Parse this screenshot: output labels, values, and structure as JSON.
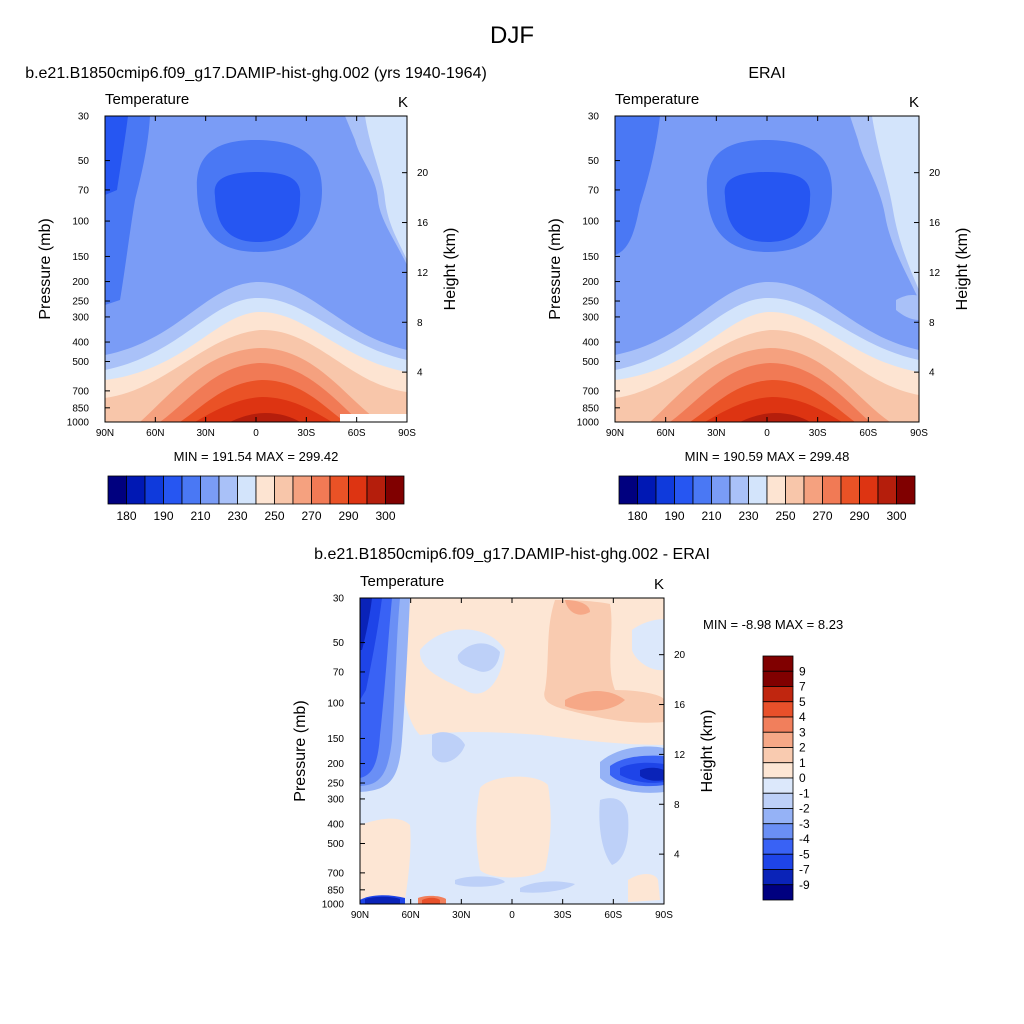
{
  "figure": {
    "title": "DJF"
  },
  "colors": {
    "abs_scale": [
      "#00007f",
      "#0018b4",
      "#0f3adc",
      "#2656f2",
      "#4a78f4",
      "#7a9cf6",
      "#a9c1f8",
      "#d3e4fb",
      "#fde4d2",
      "#f8c6aa",
      "#f5a17f",
      "#f17a55",
      "#ea5226",
      "#dd3412",
      "#b51e0c",
      "#800000"
    ],
    "diff_scale": [
      "#000080",
      "#0a23b8",
      "#1e44e8",
      "#3962f5",
      "#6a8ff5",
      "#95b2f6",
      "#bdd0f8",
      "#dce8fb",
      "#fde6d4",
      "#f9cbb0",
      "#f6a887",
      "#f17f5c",
      "#e8502a",
      "#c0260f",
      "#800000"
    ]
  },
  "chart_data": [
    {
      "type": "heatmap",
      "title": "b.e21.B1850cmip6.f09_g17.DAMIP-hist-ghg.002 (yrs 1940-1964)",
      "left_label": "Temperature",
      "right_label": "K",
      "ylabel": "Pressure (mb)",
      "ylabel_right": "Height (km)",
      "x_ticks": [
        "90N",
        "60N",
        "30N",
        "0",
        "30S",
        "60S",
        "90S"
      ],
      "y_ticks": [
        "30",
        "50",
        "70",
        "100",
        "150",
        "200",
        "250",
        "300",
        "400",
        "500",
        "700",
        "850",
        "1000"
      ],
      "y_ticks_right": [
        "20",
        "16",
        "12",
        "8",
        "4"
      ],
      "stats": "MIN = 191.54  MAX = 299.42",
      "colorbar": {
        "orientation": "horizontal",
        "levels": [
          180,
          185,
          190,
          200,
          210,
          220,
          230,
          240,
          250,
          260,
          270,
          280,
          290,
          295,
          300
        ],
        "tick_labels": [
          "180",
          "190",
          "210",
          "230",
          "250",
          "270",
          "290",
          "300"
        ]
      },
      "min": 191.54,
      "max": 299.42
    },
    {
      "type": "heatmap",
      "title": "ERAI",
      "left_label": "Temperature",
      "right_label": "K",
      "ylabel": "Pressure (mb)",
      "ylabel_right": "Height (km)",
      "x_ticks": [
        "90N",
        "60N",
        "30N",
        "0",
        "30S",
        "60S",
        "90S"
      ],
      "y_ticks": [
        "30",
        "50",
        "70",
        "100",
        "150",
        "200",
        "250",
        "300",
        "400",
        "500",
        "700",
        "850",
        "1000"
      ],
      "y_ticks_right": [
        "20",
        "16",
        "12",
        "8",
        "4"
      ],
      "stats": "MIN = 190.59  MAX = 299.48",
      "colorbar": {
        "orientation": "horizontal",
        "levels": [
          180,
          185,
          190,
          200,
          210,
          220,
          230,
          240,
          250,
          260,
          270,
          280,
          290,
          295,
          300
        ],
        "tick_labels": [
          "180",
          "190",
          "210",
          "230",
          "250",
          "270",
          "290",
          "300"
        ]
      },
      "min": 190.59,
      "max": 299.48
    },
    {
      "type": "heatmap",
      "title": "b.e21.B1850cmip6.f09_g17.DAMIP-hist-ghg.002 - ERAI",
      "left_label": "Temperature",
      "right_label": "K",
      "ylabel": "Pressure (mb)",
      "ylabel_right": "Height (km)",
      "x_ticks": [
        "90N",
        "60N",
        "30N",
        "0",
        "30S",
        "60S",
        "90S"
      ],
      "y_ticks": [
        "30",
        "50",
        "70",
        "100",
        "150",
        "200",
        "250",
        "300",
        "400",
        "500",
        "700",
        "850",
        "1000"
      ],
      "y_ticks_right": [
        "20",
        "16",
        "12",
        "8",
        "4"
      ],
      "stats": "MIN =  -8.98  MAX =   8.23",
      "colorbar": {
        "orientation": "vertical",
        "tick_labels": [
          "9",
          "7",
          "5",
          "4",
          "3",
          "2",
          "1",
          "0",
          "-1",
          "-2",
          "-3",
          "-4",
          "-5",
          "-7",
          "-9"
        ]
      },
      "min": -8.98,
      "max": 8.23
    }
  ]
}
